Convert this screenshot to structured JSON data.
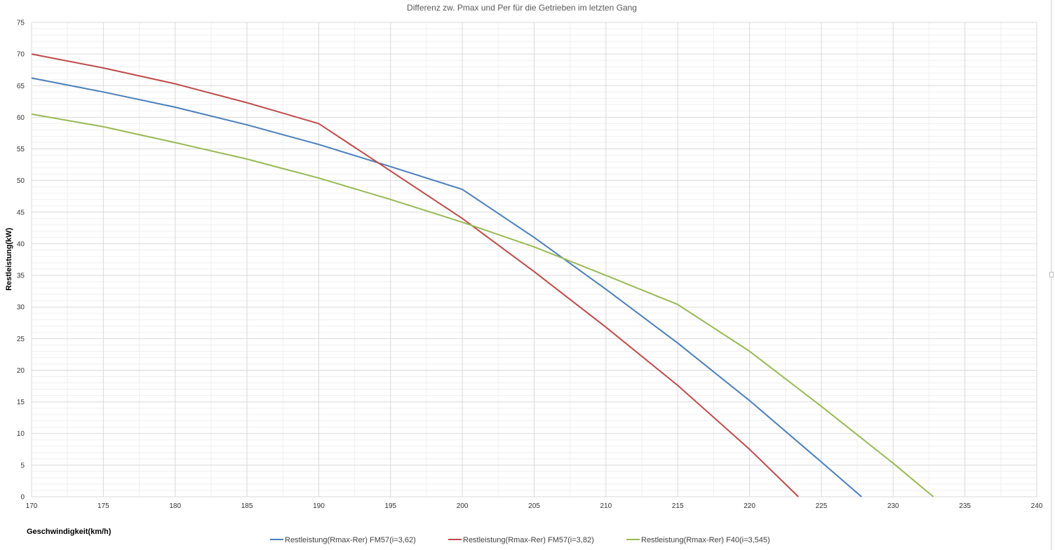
{
  "chart_data": {
    "type": "line",
    "title": "Differenz zw. Pmax und Per für die Getrieben im letzten Gang",
    "xlabel": "Geschwindigkeit(km/h)",
    "ylabel": "Restleistung(kW)",
    "xlim": [
      170,
      240
    ],
    "ylim": [
      0,
      75
    ],
    "xticks": [
      170,
      175,
      180,
      185,
      190,
      195,
      200,
      205,
      210,
      215,
      220,
      225,
      230,
      235,
      240
    ],
    "yticks": [
      0,
      5,
      10,
      15,
      20,
      25,
      30,
      35,
      40,
      45,
      50,
      55,
      60,
      65,
      70,
      75
    ],
    "grid": true,
    "legend_position": "bottom",
    "series": [
      {
        "name": "Restleistung(Rmax-Rer) FM57(i=3,62)",
        "color": "#4a7ebb",
        "x": [
          170,
          175,
          180,
          185,
          190,
          195,
          200,
          205,
          210,
          215,
          220,
          225,
          227.8
        ],
        "y": [
          66.2,
          64.0,
          61.6,
          58.8,
          55.7,
          52.2,
          48.6,
          41.0,
          32.8,
          24.3,
          15.2,
          5.5,
          0
        ]
      },
      {
        "name": "Restleistung(Rmax-Rer) FM57(i=3,82)",
        "color": "#be4b48",
        "x": [
          170,
          175,
          180,
          185,
          190,
          195,
          200,
          205,
          210,
          215,
          220,
          223.4
        ],
        "y": [
          70.0,
          67.8,
          65.3,
          62.3,
          59.0,
          51.5,
          44.0,
          35.6,
          26.8,
          17.6,
          7.5,
          0
        ]
      },
      {
        "name": "Restleistung(Rmax-Rer) F40(i=3,545)",
        "color": "#98b954",
        "x": [
          170,
          175,
          180,
          185,
          190,
          195,
          200,
          205,
          210,
          215,
          220,
          225,
          230,
          232.8
        ],
        "y": [
          60.5,
          58.5,
          56.0,
          53.4,
          50.4,
          47.0,
          43.4,
          39.5,
          35.0,
          30.4,
          23.0,
          14.3,
          5.3,
          0
        ]
      }
    ]
  }
}
